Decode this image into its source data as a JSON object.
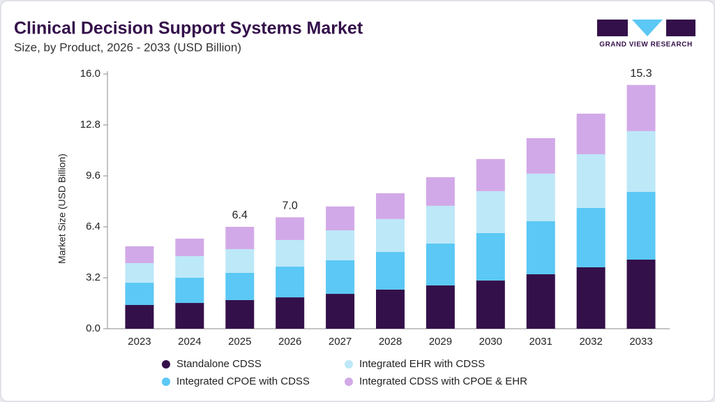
{
  "chart_data": {
    "type": "stacked_bar",
    "title": "Clinical Decision Support Systems Market",
    "subtitle": "Size, by Product, 2026 - 2033 (USD Billion)",
    "brand": "GRAND VIEW RESEARCH",
    "y_label": "Market Size (USD Billion)",
    "categories": [
      "2023",
      "2024",
      "2025",
      "2026",
      "2027",
      "2028",
      "2029",
      "2030",
      "2031",
      "2032",
      "2033"
    ],
    "series": [
      {
        "name": "Standalone CDSS",
        "color": "#34104a",
        "values": [
          1.49,
          1.62,
          1.8,
          1.97,
          2.19,
          2.46,
          2.72,
          3.03,
          3.42,
          3.86,
          4.34
        ]
      },
      {
        "name": "Integrated CPOE with CDSS",
        "color": "#5bc8f5",
        "values": [
          1.4,
          1.58,
          1.71,
          1.93,
          2.11,
          2.36,
          2.63,
          2.98,
          3.33,
          3.73,
          4.26
        ]
      },
      {
        "name": "Integrated EHR with CDSS",
        "color": "#bde8f8",
        "values": [
          1.23,
          1.36,
          1.49,
          1.67,
          1.88,
          2.07,
          2.37,
          2.63,
          2.99,
          3.37,
          3.81
        ]
      },
      {
        "name": "Integrated CDSS with CPOE & EHR",
        "color": "#d2a9e8",
        "values": [
          1.06,
          1.1,
          1.4,
          1.43,
          1.5,
          1.62,
          1.8,
          2.02,
          2.23,
          2.55,
          2.9
        ]
      }
    ],
    "annotations": [
      {
        "category": "2025",
        "value": 6.4,
        "label": "6.4"
      },
      {
        "category": "2026",
        "value": 7,
        "label": "7.0"
      },
      {
        "category": "2033",
        "value": 15.3,
        "label": "15.3"
      }
    ],
    "ylim": [
      0,
      16
    ],
    "yticks": [
      {
        "value": 0,
        "label": "0.0"
      },
      3.2,
      6.4,
      9.6,
      12.8,
      {
        "value": 16,
        "label": "16.0"
      }
    ],
    "legend": "bottom"
  }
}
